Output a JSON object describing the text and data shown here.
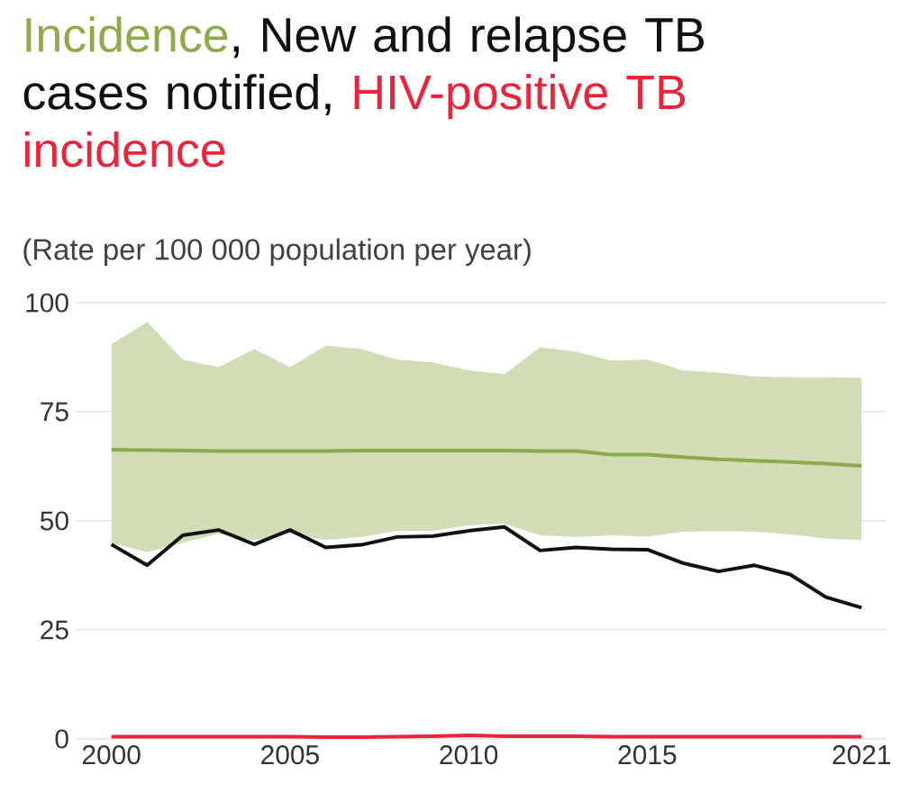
{
  "chart_data": {
    "type": "line",
    "subtitle": "(Rate per 100 000 population per year)",
    "x": [
      2000,
      2001,
      2002,
      2003,
      2004,
      2005,
      2006,
      2007,
      2008,
      2009,
      2010,
      2011,
      2012,
      2013,
      2014,
      2015,
      2016,
      2017,
      2018,
      2019,
      2020,
      2021
    ],
    "series": [
      {
        "name": "Incidence",
        "color": "#8faa4a",
        "values": [
          66.3,
          66.2,
          66.1,
          66,
          66,
          66,
          66,
          66.1,
          66.1,
          66.1,
          66.1,
          66.1,
          66,
          66,
          65.2,
          65.2,
          64.6,
          64.1,
          63.8,
          63.5,
          63.1,
          62.6
        ],
        "lower": [
          44.9,
          42.8,
          45,
          47,
          45.6,
          47,
          45.6,
          46.3,
          47.7,
          47.7,
          49,
          49.3,
          46.7,
          46.3,
          46.7,
          46.4,
          47.5,
          47.6,
          47.5,
          46.9,
          45.9,
          45.6
        ],
        "upper": [
          90.5,
          95.6,
          87,
          85.2,
          89.4,
          85.2,
          90.2,
          89.4,
          87,
          86.3,
          84.5,
          83.6,
          89.8,
          88.8,
          86.7,
          87,
          84.5,
          84,
          83.1,
          82.9,
          82.9,
          82.8
        ]
      },
      {
        "name": "New and relapse TB cases notified",
        "color": "#111111",
        "values": [
          44.6,
          39.8,
          46.7,
          47.9,
          44.6,
          47.9,
          43.9,
          44.5,
          46.3,
          46.5,
          47.7,
          48.6,
          43.2,
          43.9,
          43.5,
          43.4,
          40.3,
          38.4,
          39.8,
          37.7,
          32.5,
          30.1
        ]
      },
      {
        "name": "HIV-positive TB incidence",
        "color": "#e8253a",
        "values": [
          0.5,
          0.5,
          0.5,
          0.5,
          0.5,
          0.5,
          0.4,
          0.4,
          0.5,
          0.6,
          0.8,
          0.6,
          0.6,
          0.6,
          0.5,
          0.5,
          0.5,
          0.5,
          0.5,
          0.5,
          0.5,
          0.5
        ]
      }
    ],
    "annotations": [
      ",",
      ","
    ],
    "xlim": [
      1999,
      2021.7
    ],
    "ylim": [
      0,
      100
    ],
    "xticks": [
      2000,
      2005,
      2010,
      2015,
      2021
    ],
    "yticks": [
      0,
      25,
      50,
      75,
      100
    ],
    "grid": "y",
    "legend": false,
    "marker": "none",
    "line_style": "solid"
  }
}
